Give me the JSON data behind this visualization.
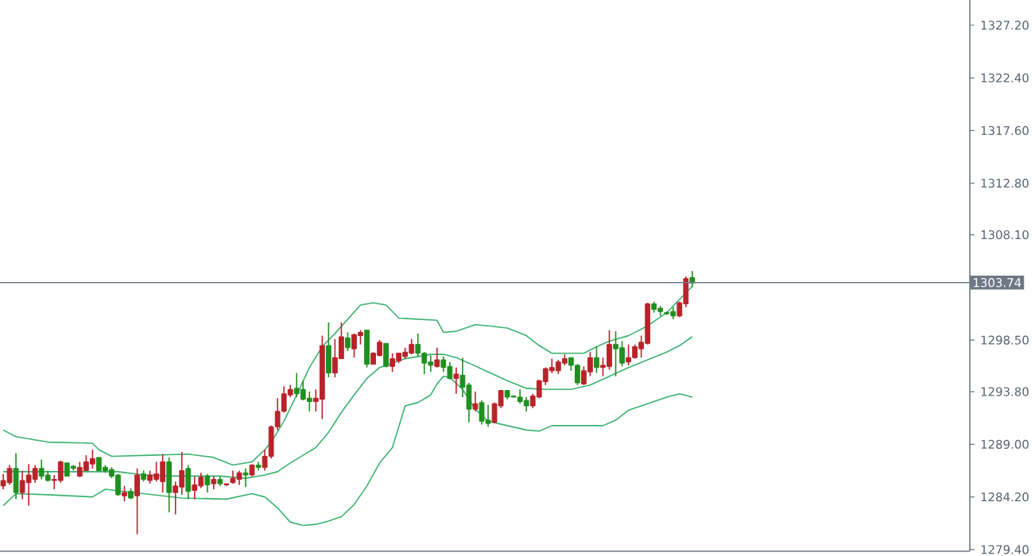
{
  "chart_data": {
    "type": "candlestick",
    "categories": [
      null,
      null,
      null,
      null,
      null,
      null,
      null,
      null,
      null,
      null,
      null,
      null,
      null,
      null,
      null,
      null,
      null,
      null,
      null,
      null,
      null,
      null,
      null,
      null,
      null,
      null,
      null,
      null,
      null,
      null,
      null,
      null,
      null,
      null,
      null,
      null,
      null,
      null,
      null,
      null,
      null,
      null,
      null,
      null,
      null,
      null,
      null,
      null,
      null,
      null,
      null,
      null,
      null,
      null,
      null,
      null,
      null,
      null,
      null,
      null,
      null,
      null,
      null,
      null,
      null,
      null,
      null,
      null,
      null,
      null,
      null,
      null,
      null,
      null,
      null,
      null,
      null,
      null,
      null,
      null,
      null,
      null,
      null,
      null,
      null,
      null,
      null,
      null,
      null,
      null,
      null,
      null,
      null,
      null,
      null,
      null,
      null,
      null,
      null,
      null,
      null,
      null,
      null,
      null,
      null,
      null,
      null,
      null,
      null,
      null,
      null,
      null,
      null,
      null,
      null,
      null,
      null,
      null,
      null,
      null,
      null,
      null,
      null,
      null,
      null,
      null,
      null,
      null,
      null,
      null,
      null,
      null,
      null,
      null,
      null,
      null,
      null,
      null,
      null,
      null,
      null,
      null,
      null,
      null,
      null,
      null,
      null,
      null,
      null,
      null,
      null,
      null
    ],
    "ohlc": [
      [
        1285.2,
        1286.3,
        1284.9,
        1285.7
      ],
      [
        1285.5,
        1287.1,
        1285.3,
        1286.8
      ],
      [
        1286.8,
        1288.2,
        1284.0,
        1284.6
      ],
      [
        1284.6,
        1286.6,
        1284.0,
        1285.7
      ],
      [
        1285.5,
        1287.2,
        1283.4,
        1286.2
      ],
      [
        1285.8,
        1287.1,
        1285.5,
        1286.8
      ],
      [
        1286.8,
        1287.6,
        1285.8,
        1286.1
      ],
      [
        1286.2,
        1286.6,
        1285.6,
        1285.7
      ],
      [
        1285.7,
        1286.2,
        1284.9,
        1285.8
      ],
      [
        1285.7,
        1287.5,
        1285.5,
        1287.4
      ],
      [
        1287.3,
        1287.3,
        1286.1,
        1286.1
      ],
      [
        1287.0,
        1287.1,
        1286.6,
        1286.8
      ],
      [
        1286.1,
        1287.4,
        1286.0,
        1286.9
      ],
      [
        1286.6,
        1288.0,
        1286.6,
        1287.4
      ],
      [
        1287.2,
        1288.5,
        1286.8,
        1287.7
      ],
      [
        1287.8,
        1287.8,
        1286.6,
        1286.6
      ],
      [
        1286.9,
        1287.1,
        1286.4,
        1286.6
      ],
      [
        1286.7,
        1286.9,
        1285.9,
        1286.1
      ],
      [
        1286.2,
        1286.3,
        1284.3,
        1284.4
      ],
      [
        1284.3,
        1285.2,
        1283.8,
        1284.6
      ],
      [
        1284.7,
        1285.0,
        1284.0,
        1284.1
      ],
      [
        1284.3,
        1286.8,
        1280.8,
        1286.2
      ],
      [
        1286.3,
        1286.6,
        1285.6,
        1285.8
      ],
      [
        1285.7,
        1286.6,
        1285.4,
        1286.2
      ],
      [
        1285.8,
        1287.4,
        1285.6,
        1286.3
      ],
      [
        1285.6,
        1288.1,
        1284.6,
        1287.4
      ],
      [
        1287.4,
        1287.8,
        1282.8,
        1284.6
      ],
      [
        1284.6,
        1285.6,
        1282.6,
        1285.2
      ],
      [
        1285.1,
        1288.3,
        1284.4,
        1286.6
      ],
      [
        1286.8,
        1287.1,
        1284.0,
        1284.7
      ],
      [
        1284.8,
        1286.1,
        1284.0,
        1285.3
      ],
      [
        1285.2,
        1286.4,
        1285.0,
        1286.0
      ],
      [
        1286.1,
        1286.3,
        1284.6,
        1285.3
      ],
      [
        1285.4,
        1286.1,
        1284.9,
        1285.8
      ],
      [
        1285.8,
        1286.1,
        1285.2,
        1285.4
      ],
      [
        1285.3,
        1285.4,
        1285.2,
        1285.4
      ],
      [
        1285.5,
        1286.6,
        1285.4,
        1285.9
      ],
      [
        1285.8,
        1286.6,
        1285.3,
        1286.4
      ],
      [
        1286.4,
        1286.8,
        1285.1,
        1286.2
      ],
      [
        1286.2,
        1287.2,
        1286.1,
        1287.1
      ],
      [
        1287.1,
        1287.4,
        1286.6,
        1286.9
      ],
      [
        1286.9,
        1288.5,
        1286.6,
        1287.9
      ],
      [
        1287.9,
        1290.7,
        1287.7,
        1290.6
      ],
      [
        1290.6,
        1293.2,
        1290.3,
        1292.0
      ],
      [
        1292.0,
        1294.3,
        1291.9,
        1293.6
      ],
      [
        1293.5,
        1294.4,
        1293.3,
        1294.0
      ],
      [
        1294.1,
        1295.5,
        1293.3,
        1293.6
      ],
      [
        1294.0,
        1294.8,
        1293.0,
        1293.1
      ],
      [
        1293.2,
        1293.8,
        1292.0,
        1292.9
      ],
      [
        1292.9,
        1294.0,
        1292.0,
        1293.2
      ],
      [
        1293.1,
        1298.9,
        1291.3,
        1298.0
      ],
      [
        1298.0,
        1300.1,
        1295.1,
        1295.5
      ],
      [
        1295.5,
        1298.6,
        1295.1,
        1296.9
      ],
      [
        1296.8,
        1300.1,
        1296.8,
        1298.8
      ],
      [
        1298.7,
        1299.2,
        1297.5,
        1297.8
      ],
      [
        1297.7,
        1299.1,
        1296.9,
        1299.0
      ],
      [
        1298.9,
        1299.4,
        1298.1,
        1299.2
      ],
      [
        1299.4,
        1299.4,
        1296.0,
        1296.3
      ],
      [
        1296.3,
        1297.4,
        1296.3,
        1297.3
      ],
      [
        1297.1,
        1298.5,
        1297.0,
        1298.3
      ],
      [
        1298.2,
        1298.2,
        1296.0,
        1296.1
      ],
      [
        1296.1,
        1297.3,
        1295.6,
        1296.8
      ],
      [
        1296.6,
        1297.3,
        1296.4,
        1297.3
      ],
      [
        1297.0,
        1297.8,
        1296.8,
        1297.4
      ],
      [
        1297.3,
        1298.6,
        1297.2,
        1298.1
      ],
      [
        1298.1,
        1299.1,
        1297.0,
        1297.3
      ],
      [
        1297.3,
        1297.4,
        1295.4,
        1296.4
      ],
      [
        1296.5,
        1297.1,
        1295.6,
        1296.2
      ],
      [
        1296.1,
        1297.8,
        1296.0,
        1296.7
      ],
      [
        1296.7,
        1297.0,
        1295.6,
        1296.0
      ],
      [
        1296.1,
        1296.5,
        1294.9,
        1295.0
      ],
      [
        1295.0,
        1296.0,
        1293.6,
        1295.4
      ],
      [
        1295.3,
        1296.9,
        1293.3,
        1294.2
      ],
      [
        1294.4,
        1294.6,
        1291.0,
        1292.2
      ],
      [
        1292.2,
        1293.8,
        1292.0,
        1292.7
      ],
      [
        1292.8,
        1293.0,
        1290.8,
        1291.1
      ],
      [
        1291.2,
        1292.6,
        1290.6,
        1290.9
      ],
      [
        1291.0,
        1292.8,
        1290.9,
        1292.7
      ],
      [
        1292.5,
        1293.9,
        1292.3,
        1293.9
      ],
      [
        1293.9,
        1293.9,
        1293.1,
        1293.3
      ],
      [
        1293.4,
        1293.4,
        1293.3,
        1293.3
      ],
      [
        1293.3,
        1294.0,
        1292.7,
        1292.9
      ],
      [
        1293.0,
        1293.3,
        1292.0,
        1292.5
      ],
      [
        1292.5,
        1293.6,
        1292.3,
        1293.4
      ],
      [
        1293.3,
        1294.9,
        1293.2,
        1294.8
      ],
      [
        1294.7,
        1296.0,
        1294.4,
        1295.9
      ],
      [
        1295.7,
        1296.8,
        1295.5,
        1296.0
      ],
      [
        1295.7,
        1296.7,
        1295.4,
        1296.5
      ],
      [
        1296.4,
        1297.2,
        1296.2,
        1296.8
      ],
      [
        1296.9,
        1296.9,
        1295.7,
        1296.2
      ],
      [
        1296.2,
        1296.3,
        1294.4,
        1294.6
      ],
      [
        1294.5,
        1296.1,
        1294.4,
        1295.7
      ],
      [
        1295.6,
        1297.4,
        1295.2,
        1296.9
      ],
      [
        1296.9,
        1297.9,
        1295.5,
        1296.0
      ],
      [
        1296.0,
        1296.9,
        1295.2,
        1296.2
      ],
      [
        1296.1,
        1299.4,
        1295.8,
        1298.1
      ],
      [
        1298.1,
        1299.3,
        1295.2,
        1297.7
      ],
      [
        1297.8,
        1298.4,
        1296.1,
        1296.4
      ],
      [
        1296.5,
        1298.1,
        1296.2,
        1296.9
      ],
      [
        1296.9,
        1298.1,
        1296.8,
        1297.9
      ],
      [
        1297.7,
        1298.9,
        1296.9,
        1298.3
      ],
      [
        1298.2,
        1301.9,
        1298.1,
        1301.8
      ],
      [
        1301.8,
        1302.0,
        1301.0,
        1301.3
      ],
      [
        1301.4,
        1301.6,
        1300.7,
        1301.1
      ],
      [
        1301.0,
        1301.1,
        1300.8,
        1300.9
      ],
      [
        1301.1,
        1301.5,
        1300.4,
        1300.7
      ],
      [
        1300.7,
        1302.0,
        1300.6,
        1301.9
      ],
      [
        1301.8,
        1304.3,
        1301.5,
        1304.1
      ],
      [
        1304.2,
        1304.8,
        1303.3,
        1303.7
      ],
      null,
      null,
      null,
      null,
      null,
      null,
      null,
      null,
      null,
      null,
      null,
      null,
      null,
      null,
      null,
      null,
      null,
      null,
      null,
      null,
      null,
      null,
      null,
      null,
      null,
      null,
      null,
      null,
      null,
      null,
      null,
      null,
      null,
      null,
      null,
      null,
      null,
      null,
      null,
      null,
      null,
      null,
      null
    ],
    "series": [
      {
        "type": "line",
        "color": "#3cb371",
        "values": [
          1290.3,
          null,
          1289.7,
          null,
          null,
          null,
          null,
          1289.2,
          null,
          null,
          null,
          null,
          null,
          null,
          1289.1,
          1288.5,
          null,
          1287.9,
          null,
          null,
          null,
          null,
          null,
          1288.0,
          null,
          null,
          null,
          null,
          null,
          1288.1,
          null,
          null,
          null,
          1287.8,
          null,
          null,
          1287.1,
          null,
          null,
          1287.4,
          null,
          1288.5,
          1289.2,
          null,
          1291.1,
          null,
          1293.5,
          null,
          1296.0,
          null,
          1297.9,
          null,
          1299.1,
          null,
          1300.4,
          null,
          1301.7,
          null,
          1301.9,
          null,
          1301.7,
          null,
          1300.5,
          null,
          null,
          1300.4,
          null,
          null,
          1300.3,
          1299.2,
          null,
          1299.3,
          null,
          null,
          1299.9,
          null,
          1299.8,
          null,
          null,
          1299.6,
          null,
          null,
          1298.9,
          null,
          1298.0,
          null,
          1297.3,
          null,
          null,
          null,
          null,
          1297.3,
          null,
          1297.9,
          null,
          1298.4,
          null,
          null,
          1298.9,
          null,
          null,
          1299.8,
          null,
          null,
          1301.0,
          null,
          1302.2,
          null,
          1303.4,
          null,
          null,
          null,
          null,
          null,
          null,
          null,
          null,
          null,
          null,
          null,
          null,
          null,
          null,
          null,
          null,
          null,
          null,
          null,
          null,
          null,
          null,
          null,
          null,
          null,
          null,
          null,
          null,
          null,
          null,
          null,
          null,
          null,
          null,
          null,
          null,
          null,
          null,
          null,
          null,
          null,
          null,
          null
        ]
      },
      {
        "type": "line",
        "color": "#3cb371",
        "values": [
          1286.5,
          null,
          null,
          null,
          null,
          null,
          null,
          null,
          null,
          null,
          null,
          null,
          null,
          null,
          1286.5,
          null,
          null,
          null,
          1286.5,
          null,
          null,
          null,
          1286.2,
          null,
          null,
          null,
          null,
          1286.1,
          null,
          null,
          null,
          null,
          null,
          null,
          1286.1,
          null,
          null,
          null,
          1285.9,
          null,
          null,
          1286.2,
          null,
          1286.5,
          null,
          1287.3,
          null,
          1288.0,
          null,
          1288.7,
          null,
          1290.1,
          null,
          1291.9,
          null,
          1293.5,
          null,
          1295.0,
          null,
          1296.0,
          null,
          1296.4,
          null,
          1296.8,
          null,
          1297.0,
          null,
          1297.2,
          null,
          1297.2,
          null,
          1296.9,
          null,
          1296.4,
          null,
          null,
          1295.6,
          null,
          null,
          1294.8,
          null,
          null,
          1294.1,
          null,
          null,
          1294.0,
          null,
          null,
          null,
          1294.0,
          null,
          null,
          1294.4,
          null,
          null,
          1295.2,
          null,
          null,
          1296.0,
          null,
          null,
          1296.7,
          null,
          null,
          1297.4,
          null,
          1298.0,
          null,
          1298.8,
          null,
          null,
          null,
          null,
          null,
          null,
          null,
          null,
          null,
          null,
          null,
          null,
          null,
          null,
          null,
          null,
          null,
          null,
          null,
          null,
          null,
          null,
          null,
          null,
          null,
          null,
          null,
          null,
          null,
          null,
          null,
          null,
          null,
          null,
          null,
          null,
          null,
          null,
          null,
          null,
          null,
          null,
          null
        ]
      },
      {
        "type": "line",
        "color": "#3cb371",
        "values": [
          1283.4,
          null,
          1284.5,
          null,
          null,
          null,
          null,
          1284.4,
          null,
          null,
          null,
          null,
          null,
          null,
          1284.2,
          null,
          1284.9,
          null,
          null,
          1284.7,
          null,
          null,
          1284.5,
          null,
          null,
          null,
          null,
          null,
          1284.1,
          null,
          null,
          null,
          null,
          null,
          null,
          1284.0,
          null,
          null,
          null,
          1284.5,
          null,
          1284.2,
          null,
          1283.2,
          null,
          1281.9,
          null,
          1281.6,
          null,
          1281.7,
          null,
          1282.0,
          null,
          1282.4,
          null,
          1283.5,
          null,
          1285.2,
          null,
          1287.3,
          null,
          1288.7,
          null,
          1292.5,
          null,
          1292.8,
          null,
          1293.5,
          1294.5,
          1295.2,
          1295.1,
          null,
          1294.0,
          null,
          1292.2,
          null,
          1291.1,
          null,
          null,
          1290.7,
          null,
          null,
          1290.3,
          null,
          1290.2,
          null,
          1290.7,
          null,
          null,
          null,
          null,
          null,
          null,
          null,
          1290.7,
          null,
          1291.2,
          null,
          1292.1,
          null,
          null,
          1292.7,
          null,
          null,
          1293.3,
          null,
          1293.6,
          null,
          1293.3,
          null,
          null,
          null,
          null,
          null,
          null,
          null,
          null,
          null,
          null,
          null,
          null,
          null,
          null,
          null,
          null,
          null,
          null,
          null,
          null,
          null,
          null,
          null,
          null,
          null,
          null,
          null,
          null,
          null,
          null,
          null,
          null,
          null,
          null,
          null,
          null,
          null,
          null,
          null,
          null,
          null,
          null,
          null
        ]
      }
    ],
    "ylim": [
      1279.25,
      1329.5
    ],
    "yticks": [
      {
        "value": 1279.4,
        "label": "1279.40"
      },
      {
        "value": 1284.2,
        "label": "1284.20"
      },
      {
        "value": 1289.0,
        "label": "1289.00"
      },
      {
        "value": 1293.8,
        "label": "1293.80"
      },
      {
        "value": 1298.5,
        "label": "1298.50"
      },
      {
        "value": 1308.1,
        "label": "1308.10"
      },
      {
        "value": 1312.8,
        "label": "1312.80"
      },
      {
        "value": 1317.6,
        "label": "1317.60"
      },
      {
        "value": 1322.4,
        "label": "1322.40"
      },
      {
        "value": 1327.2,
        "label": "1327.20"
      }
    ],
    "ref_lines": [
      {
        "axis": "y",
        "value": 1303.74,
        "label": "1303.74",
        "color": "#6f7885"
      }
    ],
    "tick_labels": "y"
  }
}
